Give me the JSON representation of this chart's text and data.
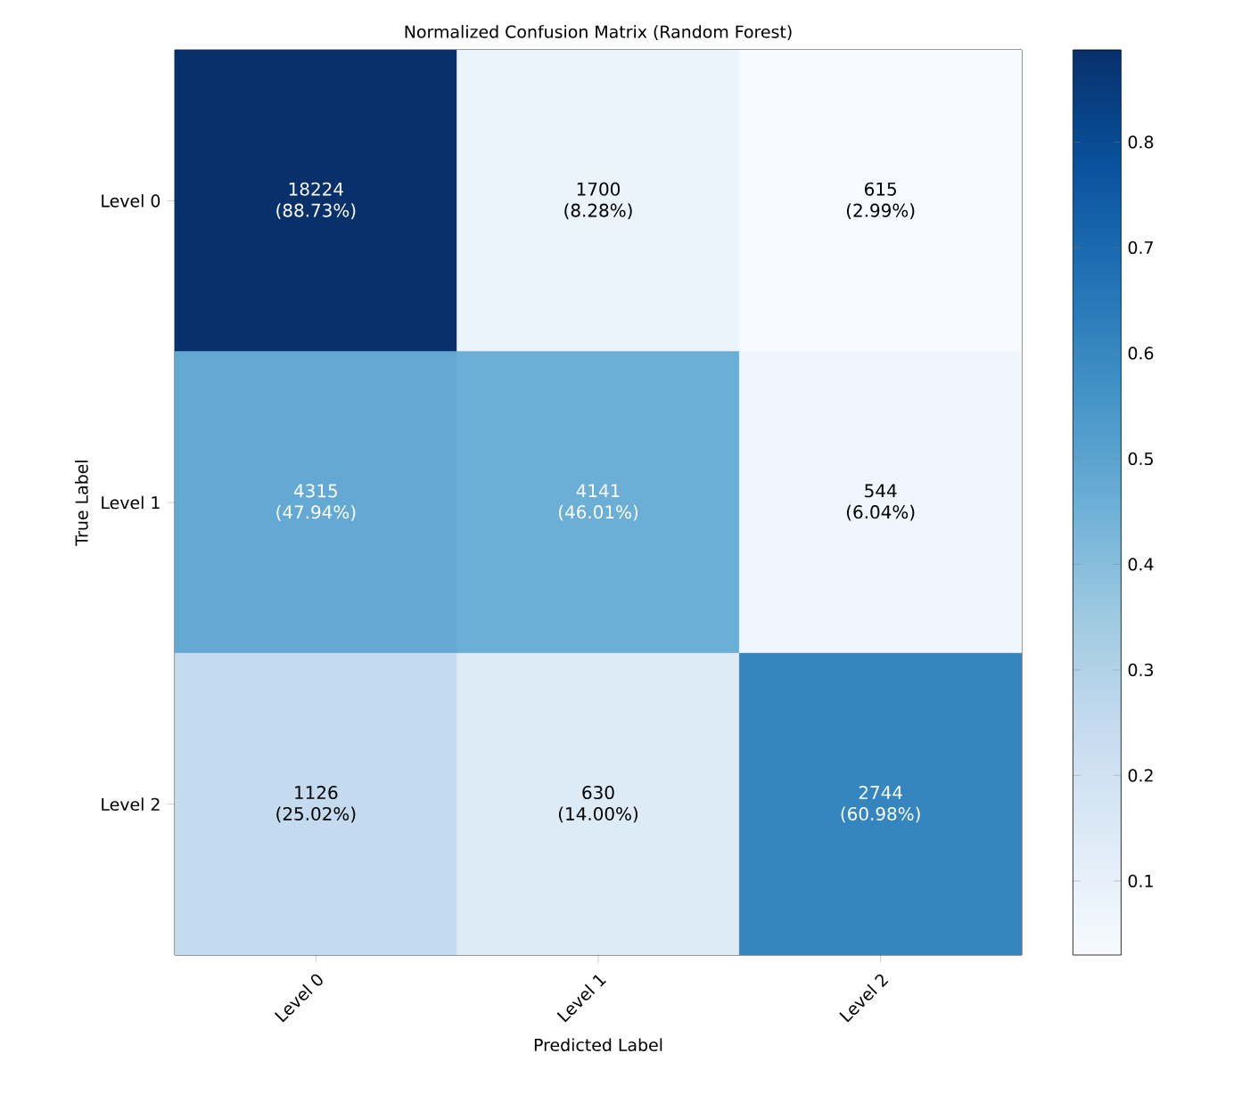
{
  "chart_data": {
    "type": "heatmap",
    "title": "Normalized Confusion Matrix (Random Forest)",
    "xlabel": "Predicted Label",
    "ylabel": "True Label",
    "categories": [
      "Level 0",
      "Level 1",
      "Level 2"
    ],
    "y_categories": [
      "Level 0",
      "Level 1",
      "Level 2"
    ],
    "cells": [
      [
        0.8873,
        0.0828,
        0.0299
      ],
      [
        0.4794,
        0.4601,
        0.0604
      ],
      [
        0.2502,
        0.14,
        0.6098
      ]
    ],
    "cell_labels": [
      [
        "18224 (88.73%)",
        "1700 (8.28%)",
        "615 (2.99%)"
      ],
      [
        "4315 (47.94%)",
        "4141 (46.01%)",
        "544 (6.04%)"
      ],
      [
        "1126 (25.02%)",
        "630 (14.00%)",
        "2744 (60.98%)"
      ]
    ],
    "clim": [
      0.0299,
      0.8873
    ],
    "cticks": [
      0.1,
      0.2,
      0.3,
      0.4,
      0.5,
      0.6,
      0.7,
      0.8
    ]
  }
}
